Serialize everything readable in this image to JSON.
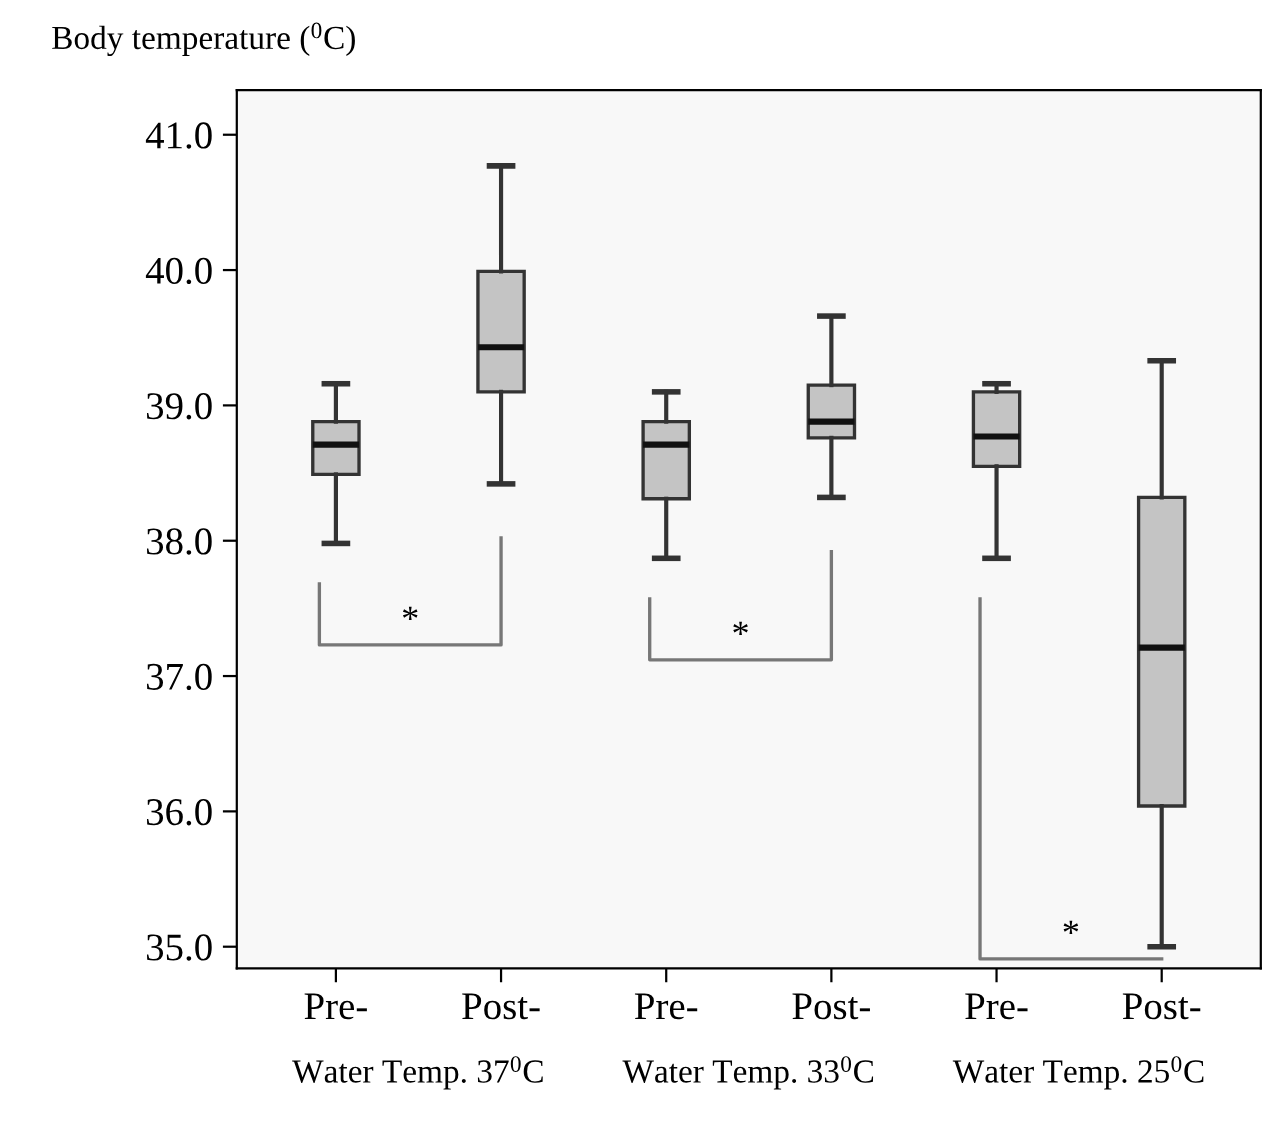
{
  "chart_data": {
    "type": "box",
    "ylabel": "Body temperature ($^{0}$C)",
    "categories": [
      "Pre-",
      "Post-",
      "Pre-",
      "Post-",
      "Pre-",
      "Post-"
    ],
    "boxes": [
      {
        "low": 37.98,
        "q1": 38.49,
        "median": 38.71,
        "q3": 38.88,
        "high": 39.16
      },
      {
        "low": 38.42,
        "q1": 39.1,
        "median": 39.43,
        "q3": 39.99,
        "high": 40.77
      },
      {
        "low": 37.87,
        "q1": 38.31,
        "median": 38.71,
        "q3": 38.88,
        "high": 39.1
      },
      {
        "low": 38.32,
        "q1": 38.76,
        "median": 38.88,
        "q3": 39.15,
        "high": 39.66
      },
      {
        "low": 37.87,
        "q1": 38.55,
        "median": 38.77,
        "q3": 39.1,
        "high": 39.16
      },
      {
        "low": 35.0,
        "q1": 36.04,
        "median": 37.21,
        "q3": 38.32,
        "high": 39.33
      }
    ],
    "color": "#c4c4c4",
    "ylim": [
      34.84,
      41.33
    ],
    "yticks": [
      {
        "value": 35,
        "label": "35.0"
      },
      {
        "value": 36,
        "label": "36.0"
      },
      {
        "value": 37,
        "label": "37.0"
      },
      {
        "value": 38,
        "label": "38.0"
      },
      {
        "value": 39,
        "label": "39.0"
      },
      {
        "value": 40,
        "label": "40.0"
      },
      {
        "value": 41,
        "label": "41.0"
      }
    ],
    "annotations": [
      "Water Temp. 37$^{0}$C",
      "Water Temp. 33$^{0}$C",
      "Water Temp. 25$^{0}$C",
      "*",
      "*",
      "*"
    ],
    "grid": false
  }
}
